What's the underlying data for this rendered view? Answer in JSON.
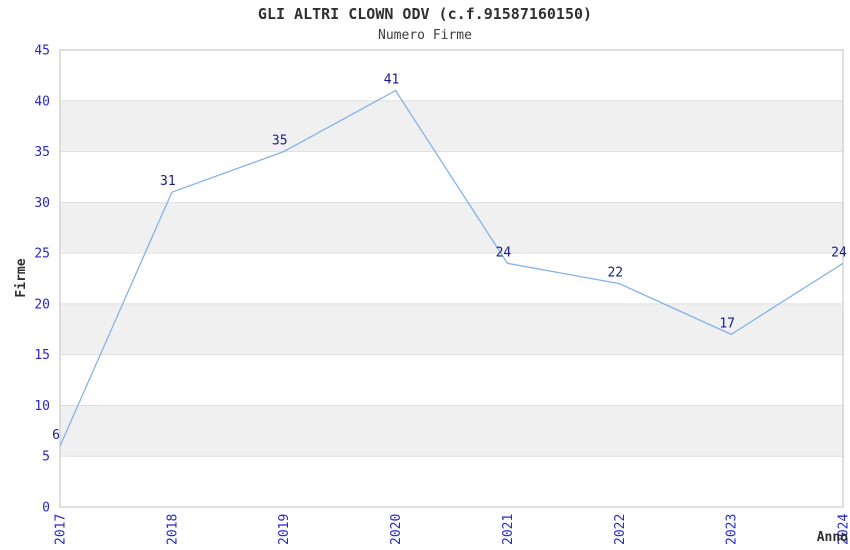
{
  "chart_data": {
    "type": "line",
    "title": "GLI ALTRI CLOWN ODV (c.f.91587160150)",
    "subtitle": "Numero Firme",
    "xlabel": "Anno",
    "ylabel": "Firme",
    "categories": [
      "2017",
      "2018",
      "2019",
      "2020",
      "2021",
      "2022",
      "2023",
      "2024"
    ],
    "values": [
      6,
      31,
      35,
      41,
      24,
      22,
      17,
      24
    ],
    "ylim": [
      0,
      45
    ],
    "ytick_step": 5,
    "grid": true,
    "legend": "none",
    "colors": {
      "line": "#85b3e6",
      "tick_label": "#2727cc",
      "data_label": "#1a1a8c",
      "title": "#303030",
      "subtitle": "#404040",
      "axis_label": "#303030",
      "band": "#f0f0f0",
      "gridline": "#e0e0e0",
      "border": "#d4d4d4",
      "background": "#ffffff"
    }
  }
}
